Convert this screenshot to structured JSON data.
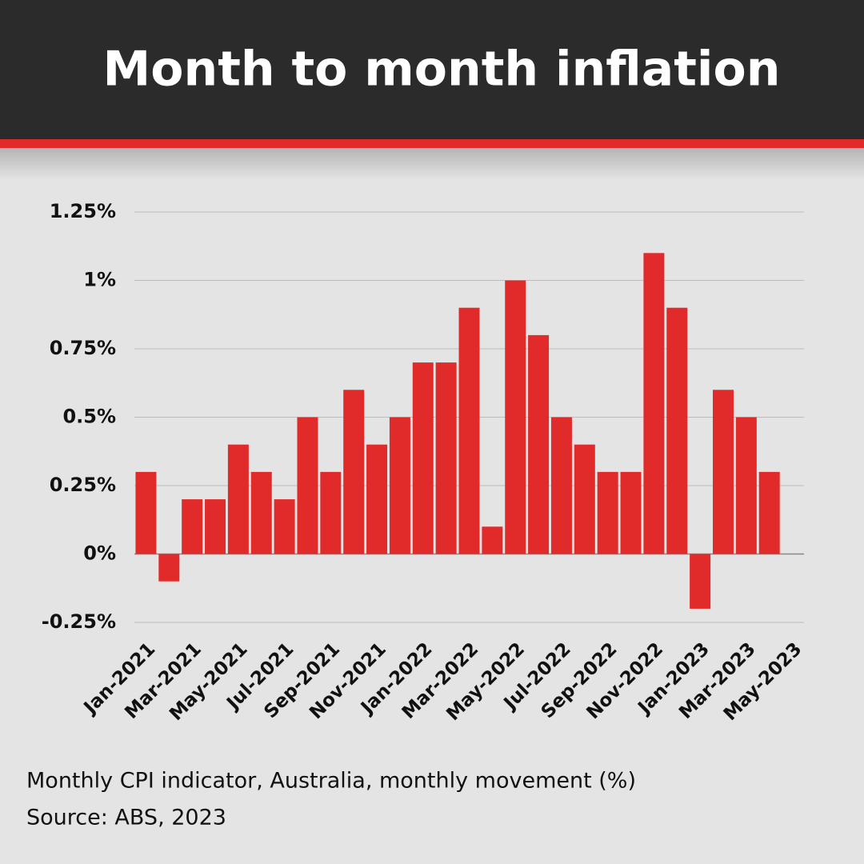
{
  "chart_data": {
    "type": "bar",
    "title": "Month to month inflation",
    "caption": "Monthly CPI indicator, Australia, monthly movement (%)",
    "source": "Source: ABS, 2023",
    "categories": [
      "Jan-2021",
      null,
      "Mar-2021",
      null,
      "May-2021",
      null,
      "Jul-2021",
      null,
      "Sep-2021",
      null,
      "Nov-2021",
      null,
      "Jan-2022",
      null,
      "Mar-2022",
      null,
      "May-2022",
      null,
      "Jul-2022",
      null,
      "Sep-2022",
      null,
      "Nov-2022",
      null,
      "Jan-2023",
      null,
      "Mar-2023",
      null,
      "May-2023"
    ],
    "values": [
      0.3,
      -0.1,
      0.2,
      0.2,
      0.4,
      0.3,
      0.2,
      0.5,
      0.3,
      0.6,
      0.4,
      0.5,
      0.7,
      0.7,
      0.9,
      0.1,
      1.0,
      0.8,
      0.5,
      0.4,
      0.3,
      0.3,
      1.1,
      0.9,
      -0.2,
      0.6,
      0.5,
      0.3,
      null
    ],
    "color": "#e12a2a",
    "ylim": [
      -0.25,
      1.25
    ],
    "yticks": [
      {
        "value": -0.25,
        "label": "-0.25%"
      },
      {
        "value": 0,
        "label": "0%"
      },
      {
        "value": 0.25,
        "label": "0.25%"
      },
      {
        "value": 0.5,
        "label": "0.5%"
      },
      {
        "value": 0.75,
        "label": "0.75%"
      },
      {
        "value": 1,
        "label": "1%"
      },
      {
        "value": 1.25,
        "label": "1.25%"
      }
    ],
    "grid": true
  }
}
